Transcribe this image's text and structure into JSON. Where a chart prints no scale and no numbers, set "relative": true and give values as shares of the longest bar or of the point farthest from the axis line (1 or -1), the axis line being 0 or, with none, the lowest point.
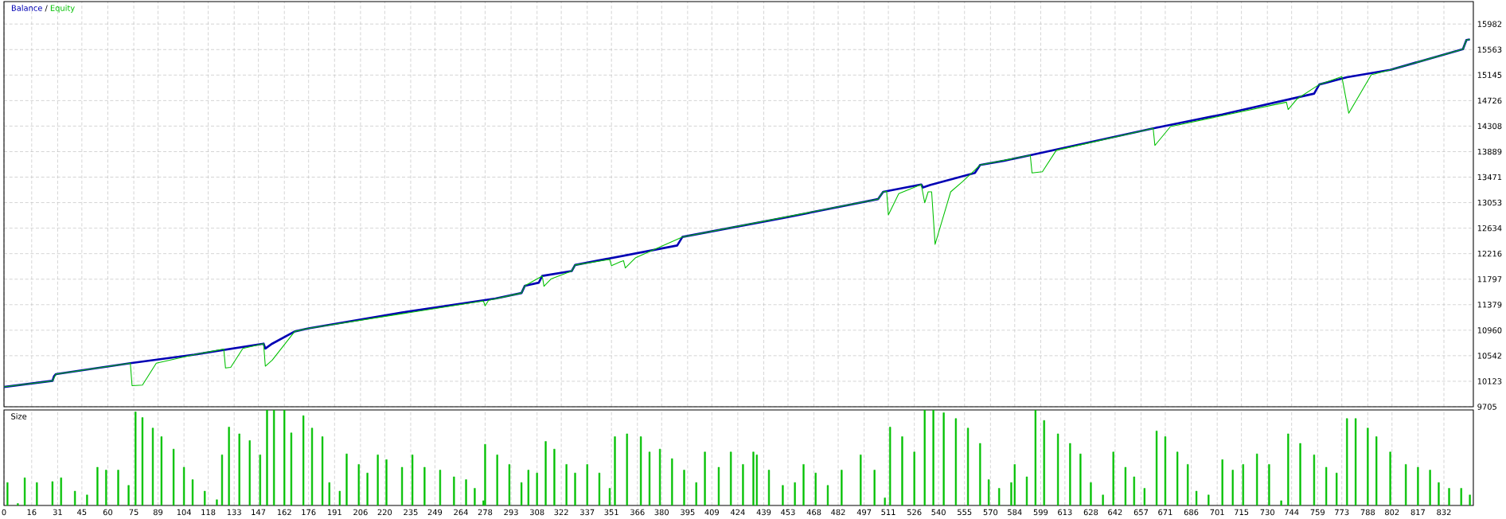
{
  "chart_data": [
    {
      "type": "line",
      "legend": "top left",
      "annotations": [
        "/"
      ],
      "grid": true,
      "tick_labels": "y",
      "xlim": [
        0,
        849
      ],
      "xticks": [
        0,
        16,
        31,
        45,
        60,
        75,
        89,
        104,
        118,
        133,
        147,
        162,
        176,
        191,
        206,
        220,
        235,
        249,
        264,
        278,
        293,
        308,
        322,
        337,
        351,
        366,
        380,
        395,
        409,
        424,
        439,
        453,
        468,
        482,
        497,
        511,
        526,
        540,
        555,
        570,
        584,
        599,
        613,
        628,
        642,
        657,
        671,
        686,
        701,
        715,
        730,
        744,
        759,
        773,
        788,
        802,
        817,
        832
      ],
      "ylim": [
        9705,
        16350
      ],
      "yticks": [
        9705,
        10123,
        10542,
        10960,
        11379,
        11797,
        12216,
        12634,
        13053,
        13471,
        13889,
        14308,
        14726,
        15145,
        15563,
        15982
      ],
      "series": [
        {
          "name": "Balance",
          "color": "#0000b4",
          "x": [
            0,
            28,
            29,
            30,
            73,
            110,
            150,
            151,
            155,
            168,
            176,
            230,
            284,
            299,
            301,
            309,
            311,
            328,
            330,
            389,
            392,
            450,
            505,
            508,
            530,
            531,
            535,
            561,
            564,
            578,
            593,
            664,
            704,
            757,
            760,
            776,
            801,
            843,
            845,
            847
          ],
          "values": [
            10030,
            10130,
            10210,
            10240,
            10420,
            10560,
            10740,
            10660,
            10740,
            10940,
            10990,
            11250,
            11480,
            11570,
            11690,
            11740,
            11850,
            11930,
            12030,
            12350,
            12490,
            12800,
            13110,
            13230,
            13350,
            13300,
            13340,
            13540,
            13670,
            13740,
            13830,
            14270,
            14500,
            14840,
            14990,
            15110,
            15230,
            15570,
            15720,
            15730
          ]
        },
        {
          "name": "Equity",
          "color": "#00c000",
          "x": [
            0,
            28,
            30,
            73,
            74,
            80,
            88,
            110,
            127,
            128,
            131,
            138,
            150,
            151,
            155,
            168,
            176,
            277,
            278,
            280,
            299,
            301,
            311,
            312,
            316,
            328,
            330,
            350,
            351,
            356,
            358,
            359,
            365,
            392,
            505,
            508,
            510,
            511,
            517,
            530,
            532,
            534,
            536,
            538,
            547,
            554,
            564,
            593,
            594,
            600,
            608,
            664,
            665,
            674,
            741,
            742,
            747,
            760,
            773,
            777,
            790,
            801,
            843,
            845,
            847
          ],
          "values": [
            10030,
            10130,
            10240,
            10420,
            10050,
            10060,
            10420,
            10560,
            10650,
            10340,
            10350,
            10660,
            10740,
            10370,
            10470,
            10940,
            10990,
            11440,
            11360,
            11450,
            11570,
            11690,
            11850,
            11680,
            11800,
            11930,
            12030,
            12120,
            12020,
            12080,
            12100,
            11980,
            12150,
            12490,
            13110,
            13230,
            13240,
            12850,
            13200,
            13350,
            13050,
            13230,
            13230,
            12370,
            13230,
            13400,
            13670,
            13830,
            13540,
            13560,
            13910,
            14270,
            13990,
            14300,
            14700,
            14580,
            14750,
            14990,
            15120,
            14520,
            15150,
            15230,
            15570,
            15720,
            15730
          ]
        }
      ]
    },
    {
      "type": "bar",
      "title": "Size",
      "relative": true,
      "grid": "x",
      "tick_labels": "x",
      "xlim": [
        0,
        849
      ],
      "xticks": [
        0,
        16,
        31,
        45,
        60,
        75,
        89,
        104,
        118,
        133,
        147,
        162,
        176,
        191,
        206,
        220,
        235,
        249,
        264,
        278,
        293,
        308,
        322,
        337,
        351,
        366,
        380,
        395,
        409,
        424,
        439,
        453,
        468,
        482,
        497,
        511,
        526,
        540,
        555,
        570,
        584,
        599,
        613,
        628,
        642,
        657,
        671,
        686,
        701,
        715,
        730,
        744,
        759,
        773,
        788,
        802,
        817,
        832
      ],
      "color": "#00c000",
      "x": [
        2,
        8,
        12,
        19,
        28,
        33,
        41,
        48,
        54,
        59,
        66,
        72,
        76,
        80,
        86,
        91,
        98,
        104,
        109,
        116,
        123,
        126,
        130,
        136,
        142,
        148,
        152,
        156,
        162,
        166,
        173,
        178,
        184,
        188,
        194,
        198,
        205,
        210,
        216,
        221,
        230,
        236,
        243,
        252,
        260,
        267,
        272,
        277,
        278,
        285,
        292,
        299,
        303,
        308,
        313,
        318,
        325,
        330,
        337,
        344,
        350,
        353,
        360,
        368,
        373,
        379,
        386,
        393,
        400,
        405,
        413,
        420,
        427,
        433,
        435,
        442,
        450,
        457,
        462,
        469,
        476,
        484,
        495,
        503,
        509,
        512,
        519,
        526,
        532,
        537,
        543,
        550,
        557,
        564,
        569,
        575,
        582,
        584,
        591,
        596,
        601,
        609,
        616,
        622,
        628,
        635,
        641,
        648,
        653,
        659,
        666,
        671,
        678,
        684,
        689,
        696,
        704,
        710,
        716,
        724,
        731,
        738,
        742,
        749,
        757,
        764,
        770,
        776,
        781,
        788,
        793,
        801,
        810,
        817,
        824,
        829,
        835,
        842,
        847
      ],
      "values": [
        0.24,
        0.02,
        0.29,
        0.24,
        0.25,
        0.29,
        0.15,
        0.11,
        0.4,
        0.37,
        0.37,
        0.21,
        0.98,
        0.92,
        0.81,
        0.72,
        0.59,
        0.4,
        0.27,
        0.15,
        0.06,
        0.53,
        0.82,
        0.75,
        0.68,
        0.53,
        1,
        1,
        1,
        0.76,
        0.94,
        0.81,
        0.72,
        0.24,
        0.15,
        0.54,
        0.43,
        0.34,
        0.53,
        0.48,
        0.4,
        0.53,
        0.4,
        0.37,
        0.3,
        0.27,
        0.18,
        0.05,
        0.64,
        0.53,
        0.43,
        0.24,
        0.37,
        0.34,
        0.67,
        0.59,
        0.43,
        0.34,
        0.43,
        0.34,
        0.18,
        0.72,
        0.75,
        0.72,
        0.56,
        0.59,
        0.49,
        0.37,
        0.24,
        0.56,
        0.4,
        0.56,
        0.43,
        0.56,
        0.53,
        0.37,
        0.21,
        0.24,
        0.43,
        0.34,
        0.21,
        0.37,
        0.53,
        0.37,
        0.08,
        0.82,
        0.72,
        0.56,
        1,
        1,
        0.97,
        0.91,
        0.81,
        0.65,
        0.27,
        0.18,
        0.24,
        0.43,
        0.3,
        1,
        0.89,
        0.75,
        0.65,
        0.54,
        0.24,
        0.11,
        0.56,
        0.4,
        0.3,
        0.18,
        0.78,
        0.72,
        0.56,
        0.43,
        0.15,
        0.11,
        0.48,
        0.37,
        0.43,
        0.54,
        0.43,
        0.05,
        0.75,
        0.65,
        0.53,
        0.4,
        0.34,
        0.91,
        0.91,
        0.81,
        0.72,
        0.56,
        0.43,
        0.4,
        0.37,
        0.24,
        0.18,
        0.18,
        0.11
      ]
    }
  ]
}
